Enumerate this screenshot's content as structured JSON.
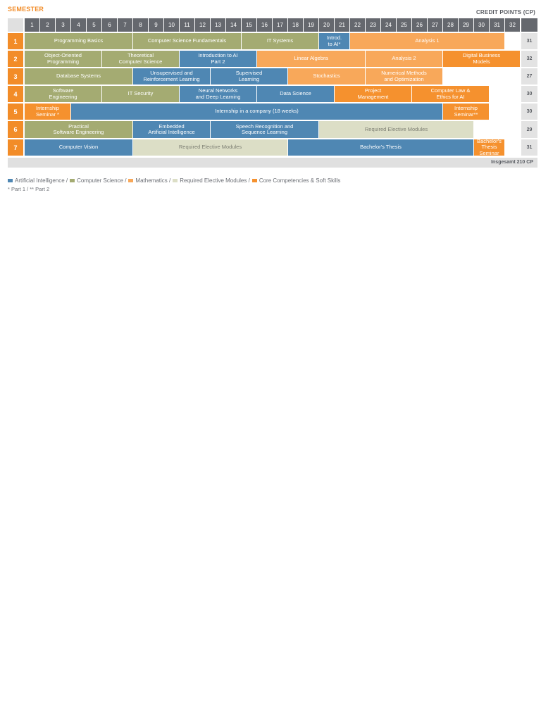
{
  "header": {
    "semester_label": "SEMESTER",
    "credit_points_label": "CREDIT POINTS (CP)"
  },
  "colors": {
    "ai": "#4f87b3",
    "cs": "#a4ab72",
    "math": "#f8a85a",
    "elective": "#dcdec6",
    "core": "#f5912e",
    "header_gray": "#65686e",
    "semester_orange": "#f28c28"
  },
  "columns": [
    "1",
    "2",
    "3",
    "4",
    "5",
    "6",
    "7",
    "8",
    "9",
    "10",
    "11",
    "12",
    "13",
    "14",
    "15",
    "16",
    "17",
    "18",
    "19",
    "20",
    "21",
    "22",
    "23",
    "24",
    "25",
    "26",
    "27",
    "28",
    "29",
    "30",
    "31",
    "32"
  ],
  "semesters": [
    {
      "num": "1",
      "cp": "31",
      "modules": [
        {
          "label": "Programming Basics",
          "start": 1,
          "end": 7,
          "cat": "cs"
        },
        {
          "label": "Computer Science Fundamentals",
          "start": 8,
          "end": 14,
          "cat": "cs"
        },
        {
          "label": "IT Systems",
          "start": 15,
          "end": 19,
          "cat": "cs"
        },
        {
          "label": "Introd.\nto AI*",
          "start": 20,
          "end": 21,
          "cat": "ai"
        },
        {
          "label": "Analysis 1",
          "start": 22,
          "end": 31,
          "cat": "math"
        }
      ]
    },
    {
      "num": "2",
      "cp": "32",
      "modules": [
        {
          "label": "Object-Oriented\nProgramming",
          "start": 1,
          "end": 5,
          "cat": "cs"
        },
        {
          "label": "Theoretical\nComputer Science",
          "start": 6,
          "end": 10,
          "cat": "cs"
        },
        {
          "label": "Introduction to AI\nPart 2",
          "start": 11,
          "end": 15,
          "cat": "ai"
        },
        {
          "label": "Linear Algebra",
          "start": 16,
          "end": 22,
          "cat": "math"
        },
        {
          "label": "Analysis 2",
          "start": 23,
          "end": 27,
          "cat": "math"
        },
        {
          "label": "Digital Business\nModels",
          "start": 28,
          "end": 32,
          "cat": "core"
        }
      ]
    },
    {
      "num": "3",
      "cp": "27",
      "modules": [
        {
          "label": "Database Systems",
          "start": 1,
          "end": 7,
          "cat": "cs"
        },
        {
          "label": "Unsupervised and\nReinforcement Learning",
          "start": 8,
          "end": 12,
          "cat": "ai"
        },
        {
          "label": "Supervised\nLearning",
          "start": 13,
          "end": 17,
          "cat": "ai"
        },
        {
          "label": "Stochastics",
          "start": 18,
          "end": 22,
          "cat": "math"
        },
        {
          "label": "Numerical Methods\nand Optimization",
          "start": 23,
          "end": 27,
          "cat": "math"
        }
      ]
    },
    {
      "num": "4",
      "cp": "30",
      "modules": [
        {
          "label": "Software\nEngineering",
          "start": 1,
          "end": 5,
          "cat": "cs"
        },
        {
          "label": "IT Security",
          "start": 6,
          "end": 10,
          "cat": "cs"
        },
        {
          "label": "Neural Networks\nand Deep Learning",
          "start": 11,
          "end": 15,
          "cat": "ai"
        },
        {
          "label": "Data Science",
          "start": 16,
          "end": 20,
          "cat": "ai"
        },
        {
          "label": "Project\nManagement",
          "start": 21,
          "end": 25,
          "cat": "core"
        },
        {
          "label": "Computer Law &\nEthics for AI",
          "start": 26,
          "end": 30,
          "cat": "core"
        }
      ]
    },
    {
      "num": "5",
      "cp": "30",
      "modules": [
        {
          "label": "Internship\nSeminar *",
          "start": 1,
          "end": 3,
          "cat": "core"
        },
        {
          "label": "Internship in a company (18 weeks)",
          "start": 4,
          "end": 27,
          "cat": "ai"
        },
        {
          "label": "Internship\nSeminar**",
          "start": 28,
          "end": 30,
          "cat": "core"
        }
      ]
    },
    {
      "num": "6",
      "cp": "29",
      "modules": [
        {
          "label": "Practical\nSoftware Engineering",
          "start": 1,
          "end": 7,
          "cat": "cs"
        },
        {
          "label": "Embedded\nArtificial Intelligence",
          "start": 8,
          "end": 12,
          "cat": "ai"
        },
        {
          "label": "Speech Recognition and\nSequence Learning",
          "start": 13,
          "end": 19,
          "cat": "ai"
        },
        {
          "label": "Required Elective Modules",
          "start": 20,
          "end": 29,
          "cat": "elective"
        }
      ]
    },
    {
      "num": "7",
      "cp": "31",
      "modules": [
        {
          "label": "Computer Vision",
          "start": 1,
          "end": 7,
          "cat": "ai"
        },
        {
          "label": "Required Elective Modules",
          "start": 8,
          "end": 17,
          "cat": "elective"
        },
        {
          "label": "Bachelor's Thesis",
          "start": 18,
          "end": 29,
          "cat": "ai"
        },
        {
          "label": "Bachelor's\nThesis\nSeminar",
          "start": 30,
          "end": 31,
          "cat": "core"
        }
      ]
    }
  ],
  "total": "Insgesamt 210 CP",
  "legend": [
    {
      "label": "Artificial Intelligence /",
      "cat": "ai"
    },
    {
      "label": "Computer Science /",
      "cat": "cs"
    },
    {
      "label": "Mathematics /",
      "cat": "math"
    },
    {
      "label": "Required Elective Modules /",
      "cat": "elective"
    },
    {
      "label": "Core Competencies & Soft Skills",
      "cat": "core"
    }
  ],
  "notes": "* Part 1  /  ** Part 2"
}
